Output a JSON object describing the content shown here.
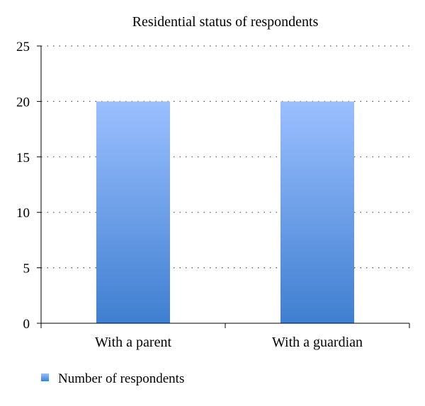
{
  "chart_data": {
    "type": "bar",
    "title": "Residential status of respondents",
    "categories": [
      "With a parent",
      "With a guardian"
    ],
    "series": [
      {
        "name": "Number of respondents",
        "values": [
          20,
          20
        ],
        "color_top": "#9bbfff",
        "color_bottom": "#3f7fd0"
      }
    ],
    "xlabel": "",
    "ylabel": "",
    "ylim": [
      0,
      25
    ],
    "yticks": [
      "0",
      "5",
      "10",
      "15",
      "20",
      "25"
    ],
    "grid": true,
    "grid_style": "dotted",
    "legend_position": "bottom-left"
  }
}
